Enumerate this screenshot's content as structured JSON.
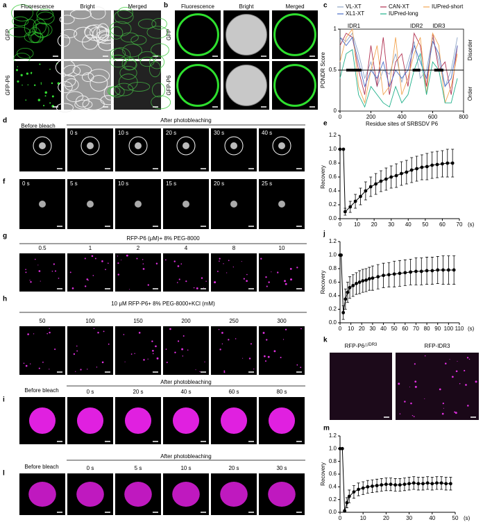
{
  "panels": {
    "a": {
      "label": "a",
      "columns": [
        "Fluorescence",
        "Bright",
        "Merged"
      ],
      "rows": [
        "GFP",
        "GFP-P6"
      ]
    },
    "b": {
      "label": "b",
      "columns": [
        "Fluorescence",
        "Bright",
        "Merged"
      ],
      "rows": [
        "GFP",
        "GFP-P6"
      ]
    },
    "c": {
      "label": "c"
    },
    "d": {
      "label": "d",
      "before": "Before bleach",
      "after": "After photobleaching",
      "times": [
        "0 s",
        "10 s",
        "20 s",
        "30 s",
        "40 s"
      ]
    },
    "e": {
      "label": "e"
    },
    "f": {
      "label": "f",
      "times": [
        "0 s",
        "5 s",
        "10 s",
        "15 s",
        "20 s",
        "25 s"
      ]
    },
    "g": {
      "label": "g",
      "title": "RFP-P6 (μM)+ 8% PEG-8000",
      "conditions": [
        "0.5",
        "1",
        "2",
        "4",
        "8",
        "10"
      ]
    },
    "h": {
      "label": "h",
      "title": "10 μM RFP-P6+ 8% PEG-8000+KCl (mM)",
      "conditions": [
        "50",
        "100",
        "150",
        "200",
        "250",
        "300"
      ]
    },
    "i": {
      "label": "i",
      "before": "Before bleach",
      "after": "After photobleaching",
      "times": [
        "0 s",
        "20 s",
        "40 s",
        "60 s",
        "80 s"
      ]
    },
    "j": {
      "label": "j"
    },
    "k": {
      "label": "k",
      "left": "RFP-P6",
      "left_sup": "△IDR3",
      "right": "RFP-IDR3"
    },
    "l": {
      "label": "l",
      "before": "Before bleach",
      "after": "After photobleaching",
      "times": [
        "0 s",
        "5 s",
        "10 s",
        "20 s",
        "30 s"
      ]
    },
    "m": {
      "label": "m"
    }
  },
  "chart_data": [
    {
      "type": "line",
      "xlabel": "Residue sites of SRBSDV P6",
      "ylabel": "PONDR Score",
      "side_labels": [
        "Disorder",
        "Order"
      ],
      "x": [
        0,
        40,
        80,
        120,
        160,
        200,
        240,
        280,
        320,
        360,
        400,
        440,
        480,
        520,
        560,
        600,
        640,
        680,
        720,
        760
      ],
      "series": [
        {
          "name": "VL-XT",
          "color": "#8fa6c6",
          "values": [
            0.9,
            0.85,
            0.95,
            0.7,
            0.4,
            0.6,
            0.3,
            0.5,
            0.45,
            0.7,
            0.35,
            0.6,
            0.85,
            0.4,
            0.5,
            0.9,
            0.6,
            0.3,
            0.5,
            0.9
          ]
        },
        {
          "name": "CAN-XT",
          "color": "#b03050",
          "values": [
            0.8,
            0.95,
            0.9,
            0.5,
            0.2,
            0.8,
            0.3,
            0.9,
            0.2,
            0.6,
            0.7,
            0.3,
            0.95,
            0.8,
            0.3,
            0.95,
            0.5,
            0.6,
            0.2,
            0.8
          ]
        },
        {
          "name": "IUPred-short",
          "color": "#f2a552",
          "values": [
            0.6,
            0.9,
            1.0,
            0.3,
            0.1,
            0.5,
            0.8,
            0.2,
            0.3,
            0.9,
            0.2,
            0.4,
            0.7,
            0.9,
            0.2,
            0.95,
            0.8,
            0.1,
            0.3,
            0.7
          ]
        },
        {
          "name": "XL1-XT",
          "color": "#4a6ec8",
          "values": [
            0.9,
            0.8,
            0.9,
            0.6,
            0.3,
            0.5,
            0.4,
            0.6,
            0.3,
            0.5,
            0.4,
            0.5,
            0.8,
            0.6,
            0.4,
            0.85,
            0.7,
            0.3,
            0.4,
            0.8
          ]
        },
        {
          "name": "IUPred-long",
          "color": "#1fb08a",
          "values": [
            0.4,
            0.7,
            0.75,
            0.2,
            0.05,
            0.3,
            0.2,
            0.1,
            0.05,
            0.3,
            0.1,
            0.2,
            0.5,
            0.7,
            0.2,
            0.6,
            0.5,
            0.1,
            0.1,
            0.4
          ]
        }
      ],
      "threshold": 0.5,
      "regions": [
        {
          "label": "IDR1",
          "range": [
            40,
            140
          ]
        },
        {
          "label": "IDR2",
          "range": [
            470,
            520
          ]
        },
        {
          "label": "IDR3",
          "range": [
            610,
            670
          ]
        }
      ],
      "xlim": [
        0,
        800
      ],
      "xticks": [
        0,
        200,
        400,
        600,
        800
      ],
      "ylim": [
        0,
        1
      ],
      "yticks": [
        0,
        0.5,
        1
      ]
    },
    {
      "type": "line",
      "ylabel": "Recovery",
      "xlabel": "(s)",
      "color": "#000000",
      "x": [
        0,
        2,
        3,
        6,
        9,
        12,
        15,
        18,
        21,
        24,
        27,
        30,
        33,
        36,
        39,
        42,
        45,
        48,
        51,
        54,
        57,
        60,
        63,
        66
      ],
      "values": [
        1,
        1,
        0.1,
        0.17,
        0.25,
        0.32,
        0.4,
        0.46,
        0.5,
        0.54,
        0.57,
        0.6,
        0.62,
        0.65,
        0.67,
        0.7,
        0.72,
        0.74,
        0.75,
        0.77,
        0.78,
        0.79,
        0.8,
        0.8
      ],
      "errors": [
        0,
        0,
        0.05,
        0.08,
        0.1,
        0.12,
        0.13,
        0.14,
        0.15,
        0.15,
        0.16,
        0.16,
        0.17,
        0.17,
        0.17,
        0.18,
        0.18,
        0.18,
        0.19,
        0.19,
        0.19,
        0.19,
        0.2,
        0.2
      ],
      "xlim": [
        0,
        70
      ],
      "xticks": [
        0,
        10,
        20,
        30,
        40,
        50,
        60,
        70
      ],
      "ylim": [
        0,
        1.2
      ],
      "yticks": [
        {
          "value": 0,
          "label": "0.0"
        },
        0.2,
        0.4,
        0.6,
        0.8,
        {
          "value": 1,
          "label": "1.0"
        },
        1.2
      ]
    },
    {
      "type": "line",
      "ylabel": "Recovery",
      "xlabel": "(s)",
      "color": "#000000",
      "x": [
        0,
        1,
        3,
        5,
        7,
        9,
        12,
        15,
        18,
        21,
        24,
        27,
        30,
        35,
        40,
        45,
        50,
        55,
        60,
        65,
        70,
        75,
        80,
        85,
        90,
        95,
        100,
        105
      ],
      "values": [
        1,
        1,
        0.15,
        0.35,
        0.45,
        0.52,
        0.55,
        0.58,
        0.6,
        0.62,
        0.63,
        0.65,
        0.66,
        0.68,
        0.7,
        0.71,
        0.72,
        0.73,
        0.74,
        0.75,
        0.76,
        0.76,
        0.77,
        0.77,
        0.78,
        0.78,
        0.78,
        0.78
      ],
      "errors": [
        0,
        0,
        0.1,
        0.15,
        0.15,
        0.16,
        0.16,
        0.16,
        0.17,
        0.17,
        0.17,
        0.17,
        0.18,
        0.18,
        0.18,
        0.18,
        0.19,
        0.19,
        0.19,
        0.19,
        0.2,
        0.2,
        0.2,
        0.2,
        0.2,
        0.21,
        0.21,
        0.21
      ],
      "xlim": [
        0,
        110
      ],
      "xticks": [
        0,
        10,
        20,
        30,
        40,
        50,
        60,
        70,
        80,
        90,
        100,
        110
      ],
      "ylim": [
        0,
        1.2
      ],
      "yticks": [
        {
          "value": 0,
          "label": "0.0"
        },
        0.2,
        0.4,
        0.6,
        0.8,
        {
          "value": 1,
          "label": "1.0"
        },
        1.2
      ]
    },
    {
      "type": "line",
      "ylabel": "Recovery",
      "xlabel": "(s)",
      "color": "#000000",
      "x": [
        0,
        1,
        2,
        3,
        4,
        6,
        8,
        10,
        12,
        14,
        16,
        18,
        20,
        22,
        24,
        26,
        28,
        30,
        32,
        34,
        36,
        38,
        40,
        42,
        44,
        46,
        48
      ],
      "values": [
        1,
        1,
        0.02,
        0.15,
        0.25,
        0.32,
        0.36,
        0.38,
        0.4,
        0.41,
        0.42,
        0.43,
        0.44,
        0.44,
        0.43,
        0.43,
        0.44,
        0.45,
        0.46,
        0.45,
        0.45,
        0.46,
        0.45,
        0.46,
        0.46,
        0.45,
        0.45
      ],
      "errors": [
        0,
        0,
        0.02,
        0.08,
        0.1,
        0.1,
        0.1,
        0.1,
        0.1,
        0.1,
        0.1,
        0.1,
        0.1,
        0.1,
        0.1,
        0.1,
        0.1,
        0.1,
        0.1,
        0.1,
        0.1,
        0.1,
        0.1,
        0.1,
        0.1,
        0.1,
        0.1
      ],
      "xlim": [
        0,
        50
      ],
      "xticks": [
        0,
        10,
        20,
        30,
        40,
        50
      ],
      "ylim": [
        0,
        1.2
      ],
      "yticks": [
        {
          "value": 0,
          "label": "0.0"
        },
        0.2,
        0.4,
        0.6,
        0.8,
        {
          "value": 1,
          "label": "1.0"
        },
        1.2
      ]
    }
  ]
}
